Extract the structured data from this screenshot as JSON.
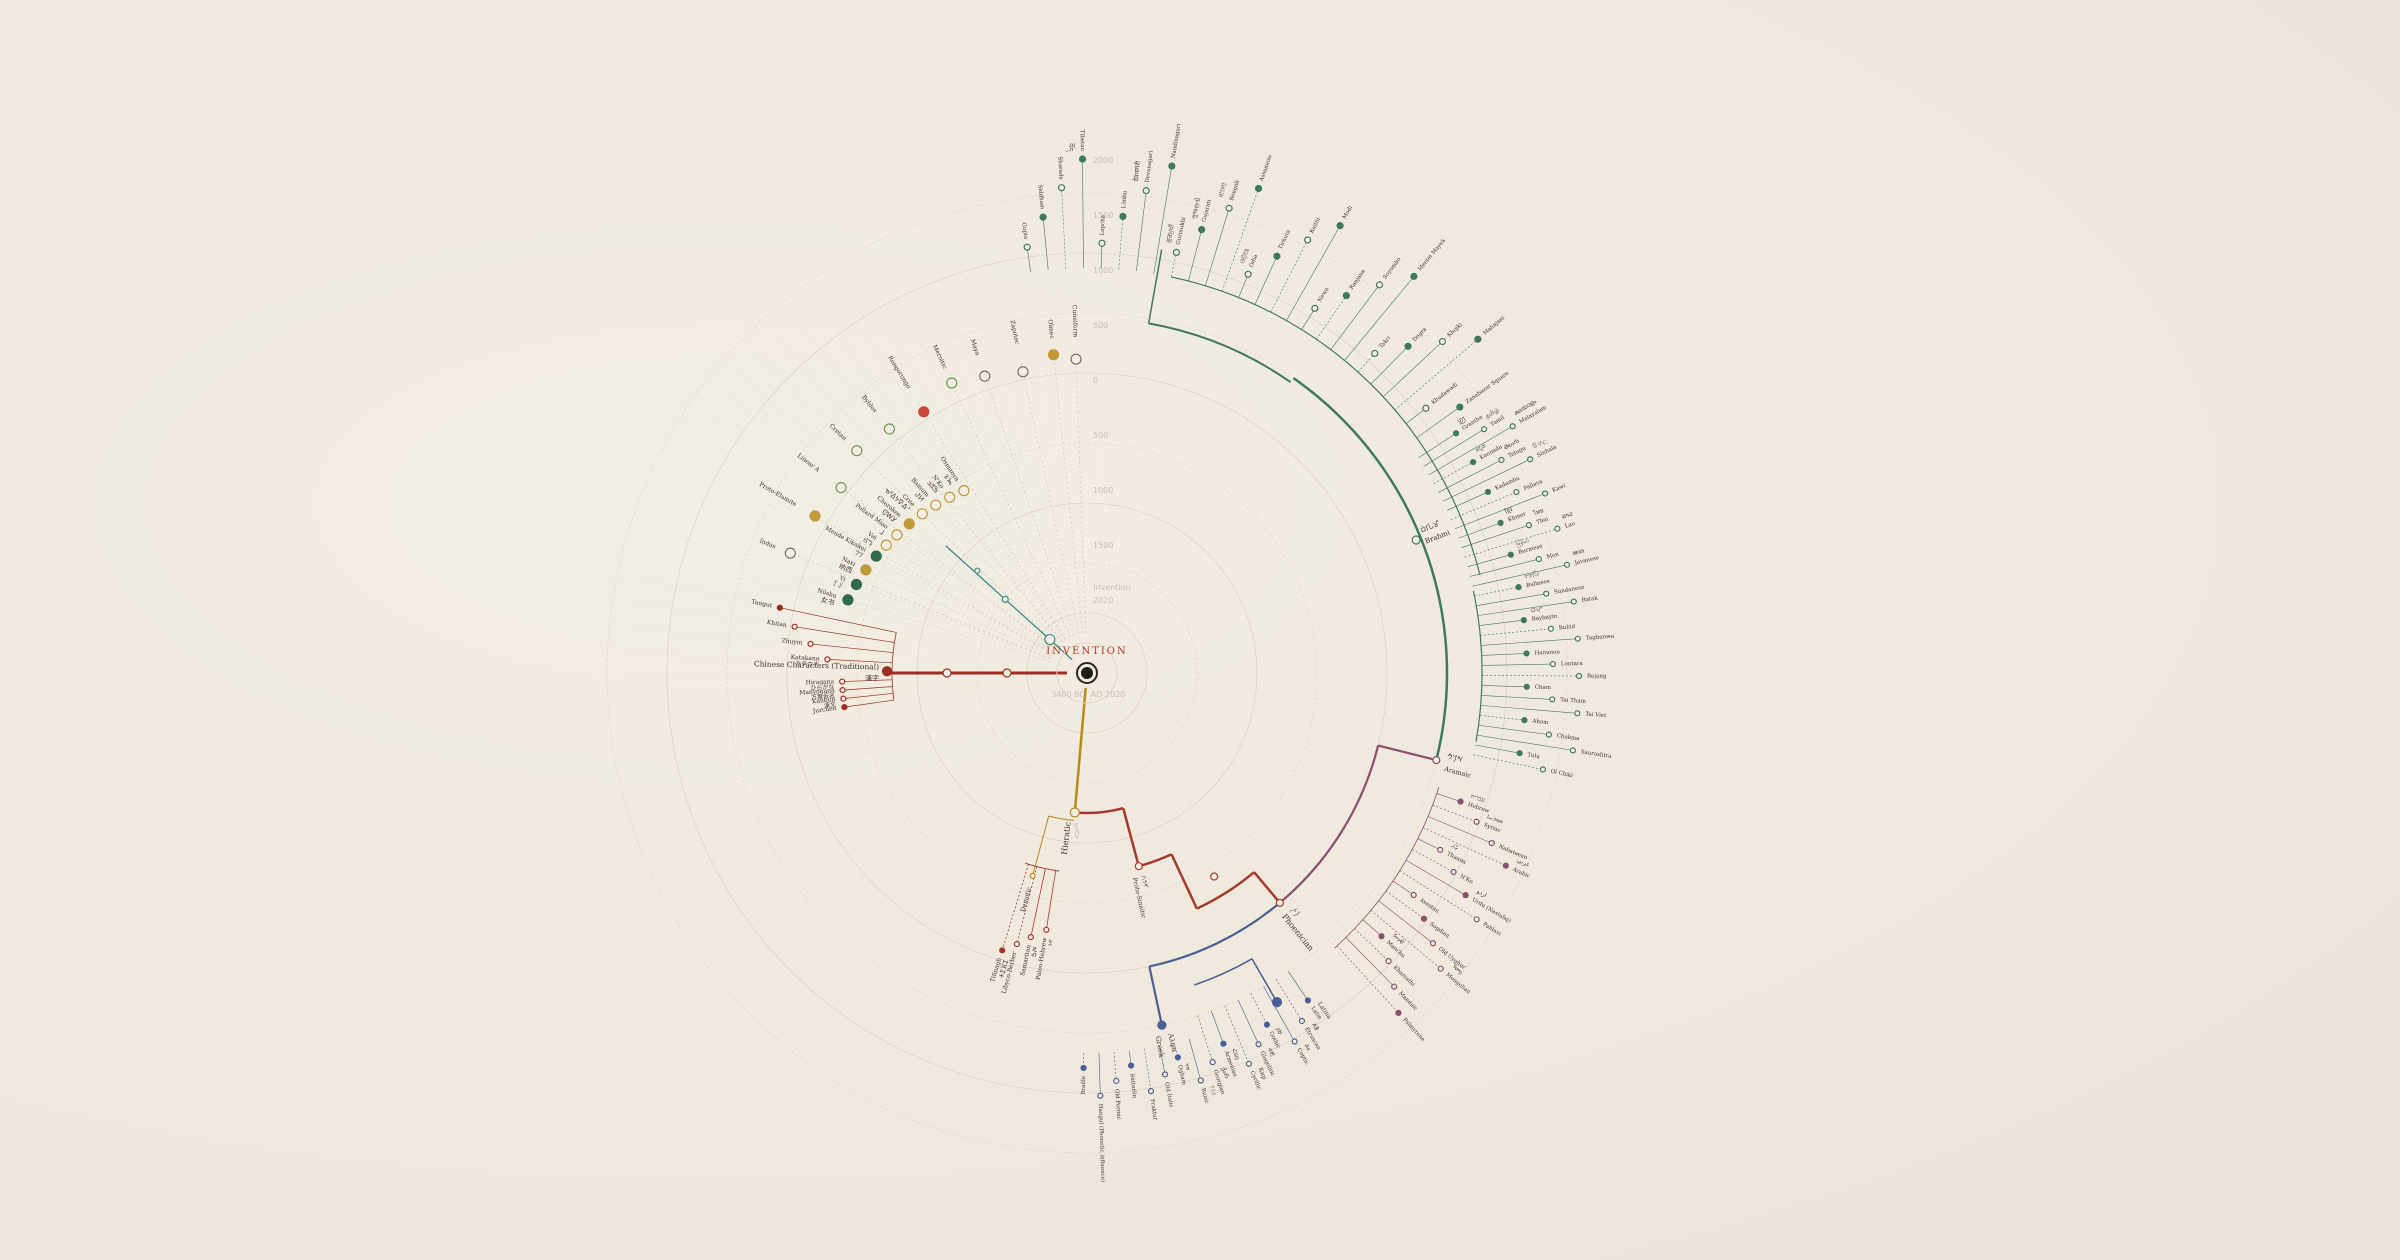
{
  "center": {
    "title": "INVENTION",
    "axis_left": "3400 BC",
    "axis_right": "AD 2020",
    "top_tick": "Invention"
  },
  "colors": {
    "background": "#efe8db",
    "brahmic": "#3f7a5a",
    "aramaic": "#8a4f6e",
    "phoenician": "#a33a2c",
    "greek": "#4a5f94",
    "egyptian": "#b8891c",
    "chinese": "#9b2f24",
    "isolates": "#b5502f",
    "node_open": "#f3eee3",
    "guide": "#d8cfbd"
  },
  "time_ticks": [
    "2020",
    "1500",
    "1000",
    "500",
    "0",
    "500",
    "1000",
    "1500",
    "2000"
  ],
  "isolate_branch": {
    "color": "#3f8a88",
    "nodes": [
      {
        "label": "Indus",
        "color": "#7a7360"
      },
      {
        "label": "Proto-Elamite",
        "color": "#c29a3a"
      },
      {
        "label": "Linear A",
        "color": "#6d9a56"
      },
      {
        "label": "Cretan",
        "color": "#6d9a56"
      },
      {
        "label": "Byblos",
        "color": "#6d9a56"
      },
      {
        "label": "Rongorongo",
        "color": "#c8473a"
      },
      {
        "label": "Meroitic",
        "color": "#6d9a56"
      },
      {
        "label": "Maya",
        "color": "#7a7360"
      },
      {
        "label": "Zapotec",
        "color": "#7a7360"
      },
      {
        "label": "Olmec",
        "color": "#c29a3a"
      },
      {
        "label": "Cuneiform",
        "color": "#7a7360"
      }
    ]
  },
  "chinese_branch": {
    "hub_label": "Chinese Characters (Traditional)",
    "hub_glyph": "漢字",
    "leaves": [
      {
        "label": "Jurchen"
      },
      {
        "label": "Kanbun",
        "glyph": "漢文"
      },
      {
        "label": "Manyōgana",
        "glyph": "万葉仮名"
      },
      {
        "label": "Hiragana",
        "glyph": "ひらがな"
      },
      {
        "label": "Katakana",
        "glyph": "カタカナ"
      },
      {
        "label": "Zhuyin"
      },
      {
        "label": "Khitan"
      },
      {
        "label": "Tangut"
      }
    ],
    "other": [
      {
        "label": "Nüshu",
        "glyph": "女书",
        "color": "#2f6a4a"
      },
      {
        "label": "Yi",
        "glyph": "ꆈꌠ",
        "color": "#2f6a4a"
      },
      {
        "label": "Naxi",
        "glyph": "纳西",
        "color": "#c29a3a"
      },
      {
        "label": "Mende Kikakui",
        "glyph": "𞠀𞠁",
        "color": "#2f6a4a"
      },
      {
        "label": "Vai",
        "glyph": "ꕙꔤ",
        "color": "#c29a3a"
      },
      {
        "label": "Pollard Miao",
        "glyph": "𖼀",
        "color": "#c29a3a"
      },
      {
        "label": "Cherokee",
        "glyph": "ᏣᎳᎩ",
        "color": "#c29a3a"
      },
      {
        "label": "Cree",
        "glyph": "ᓀᐦᐃᔭᐍᐏᐣ",
        "color": "#c29a3a"
      },
      {
        "label": "Bamum",
        "glyph": "ꚠꚡ",
        "color": "#c29a3a"
      },
      {
        "label": "N'Ko",
        "glyph": "ߒߞߏ",
        "color": "#c29a3a"
      },
      {
        "label": "Osmanya",
        "glyph": "𐒈𐒝",
        "color": "#c29a3a"
      }
    ]
  },
  "egyptian_branch": {
    "label": "Hieratic",
    "glyph": "𓂋𓏏",
    "children": [
      {
        "label": "Demotic"
      },
      {
        "label": "Proto-Sinaitic",
        "glyph": "𐤀𐤁𐤂"
      }
    ]
  },
  "phoenician": {
    "label": "Phoenician",
    "glyph": "𐤐𐤕",
    "children": [
      {
        "label": "Paleo-Hebrew",
        "glyph": "𐤀𐤁"
      },
      {
        "label": "Samaritan",
        "glyph": "ࠀࠁ"
      },
      {
        "label": "Libyco-Berber"
      },
      {
        "label": "Tifinagh",
        "glyph": "ⵜⵉⴼⵉ"
      }
    ]
  },
  "greek": {
    "label": "Greek",
    "glyph": "Αλφα",
    "children": [
      {
        "label": "Latin",
        "glyph": "Latina"
      },
      {
        "label": "Etruscan",
        "glyph": "𐌀𐌁"
      },
      {
        "label": "Coptic",
        "glyph": "Ⲁⲃ"
      },
      {
        "label": "Gothic",
        "glyph": "𐌰𐌱"
      },
      {
        "label": "Glagolitic",
        "glyph": "ⰀⰁ"
      },
      {
        "label": "Cyrillic",
        "glyph": "Кир"
      },
      {
        "label": "Armenian",
        "glyph": "Հայ"
      },
      {
        "label": "Georgian",
        "glyph": "ქარ"
      },
      {
        "label": "Runic",
        "glyph": "ᚠᚢᚦ"
      },
      {
        "label": "Ogham",
        "glyph": "ᚁᚂ"
      },
      {
        "label": "Old Italic"
      },
      {
        "label": "Fraktur"
      },
      {
        "label": "Sütterlin"
      },
      {
        "label": "Old Permic"
      },
      {
        "label": "Hangul (Phonetic influence)"
      },
      {
        "label": "Braille"
      }
    ]
  },
  "aramaic": {
    "label": "Aramaic",
    "glyph": "𐡀𐡓𐡌",
    "children": [
      {
        "label": "Hebrew",
        "glyph": "עברית"
      },
      {
        "label": "Syriac",
        "glyph": "ܣܘܪܝܝܐ"
      },
      {
        "label": "Nabataean"
      },
      {
        "label": "Arabic",
        "glyph": "عربي"
      },
      {
        "label": "Thaana",
        "glyph": "ތާނަ"
      },
      {
        "label": "N'Ko"
      },
      {
        "label": "Urdu (Nastaliq)",
        "glyph": "اردو"
      },
      {
        "label": "Pahlavi"
      },
      {
        "label": "Avestan"
      },
      {
        "label": "Sogdian"
      },
      {
        "label": "Old Uyghur"
      },
      {
        "label": "Mongolian",
        "glyph": "ᠮᠣᠩ"
      },
      {
        "label": "Manchu",
        "glyph": "ᠮᠠᠨᠵᡠ"
      },
      {
        "label": "Kharosthi"
      },
      {
        "label": "Mandaic"
      },
      {
        "label": "Palmyrene"
      }
    ]
  },
  "brahmic": {
    "label": "Brahmi",
    "glyph": "𑀩𑁆𑀭𑀸𑀳𑁆𑀫𑀻",
    "northern": [
      {
        "label": "Gupta"
      },
      {
        "label": "Siddham"
      },
      {
        "label": "Sharada"
      },
      {
        "label": "Tibetan",
        "glyph": "བོད"
      },
      {
        "label": "Lepcha"
      },
      {
        "label": "Limbu"
      },
      {
        "label": "Devanagari",
        "glyph": "देवनागरी"
      },
      {
        "label": "Nandinagari"
      },
      {
        "label": "Gurmukhi",
        "glyph": "ਗੁਰਮੁਖੀ"
      },
      {
        "label": "Gujarati",
        "glyph": "ગુજરાતી"
      },
      {
        "label": "Bengali",
        "glyph": "বাংলা"
      },
      {
        "label": "Assamese"
      },
      {
        "label": "Odia",
        "glyph": "ଓଡ଼ିଆ"
      },
      {
        "label": "Tirhuta"
      },
      {
        "label": "Kaithi"
      },
      {
        "label": "Modi"
      },
      {
        "label": "Newa"
      },
      {
        "label": "Ranjana"
      },
      {
        "label": "Soyombo"
      },
      {
        "label": "Meetei Mayek"
      },
      {
        "label": "Takri"
      },
      {
        "label": "Dogra"
      },
      {
        "label": "Khojki"
      },
      {
        "label": "Mahajani"
      },
      {
        "label": "Khudawadi"
      },
      {
        "label": "Zanabazar Square"
      }
    ],
    "southern": [
      {
        "label": "Grantha",
        "glyph": "𑌗𑍍𑌰"
      },
      {
        "label": "Tamil",
        "glyph": "தமிழ்"
      },
      {
        "label": "Malayalam",
        "glyph": "മലയാളം"
      },
      {
        "label": "Kannada",
        "glyph": "ಕನ್ನಡ"
      },
      {
        "label": "Telugu",
        "glyph": "తెలుగు"
      },
      {
        "label": "Sinhala",
        "glyph": "සිංහල"
      },
      {
        "label": "Kadamba"
      },
      {
        "label": "Pallava"
      },
      {
        "label": "Kawi"
      },
      {
        "label": "Khmer",
        "glyph": "ខ្មែរ"
      },
      {
        "label": "Thai",
        "glyph": "ไทย"
      },
      {
        "label": "Lao",
        "glyph": "ລາວ"
      },
      {
        "label": "Burmese",
        "glyph": "မြန်မာ"
      },
      {
        "label": "Mon"
      },
      {
        "label": "Javanese",
        "glyph": "ꦗꦮ"
      },
      {
        "label": "Balinese",
        "glyph": "ᬩᬮᬶ"
      },
      {
        "label": "Sundanese"
      },
      {
        "label": "Batak"
      },
      {
        "label": "Baybayin",
        "glyph": "ᜊᜌ᜔"
      },
      {
        "label": "Buhid"
      },
      {
        "label": "Tagbanwa"
      },
      {
        "label": "Hanunoo"
      },
      {
        "label": "Lontara"
      },
      {
        "label": "Rejang"
      },
      {
        "label": "Cham"
      },
      {
        "label": "Tai Tham"
      },
      {
        "label": "Tai Viet"
      },
      {
        "label": "Ahom"
      },
      {
        "label": "Chakma"
      },
      {
        "label": "Saurashtra"
      },
      {
        "label": "Tulu"
      },
      {
        "label": "Ol Chiki"
      }
    ]
  }
}
